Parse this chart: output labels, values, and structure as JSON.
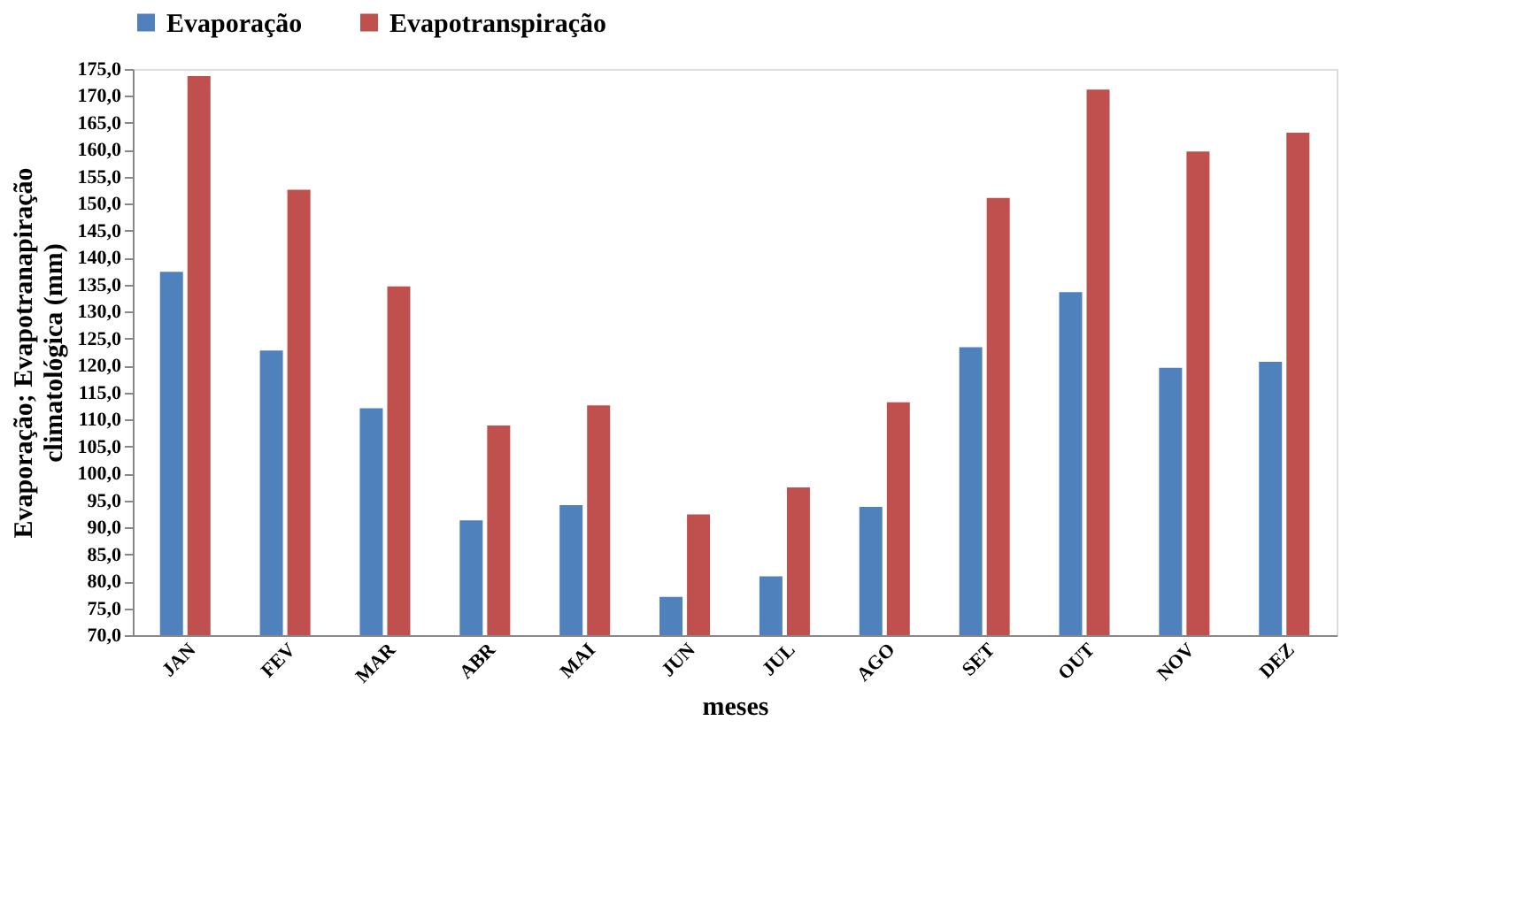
{
  "chart_data": {
    "type": "bar",
    "xlabel": "meses",
    "ylabel": [
      "Evaporação; Evapotranapiração",
      "climatológica (mm)"
    ],
    "categories": [
      "JAN",
      "FEV",
      "MAR",
      "ABR",
      "MAI",
      "JUN",
      "JUL",
      "AGO",
      "SET",
      "OUT",
      "NOV",
      "DEZ"
    ],
    "series": [
      {
        "name": "Evaporação",
        "color": "#4f81bd",
        "values": [
          137.4,
          122.8,
          112.1,
          91.3,
          94.1,
          77.1,
          80.9,
          93.8,
          123.4,
          133.6,
          119.6,
          120.7
        ]
      },
      {
        "name": "Evapotranspiração",
        "color": "#c0504d",
        "values": [
          173.7,
          152.6,
          134.7,
          108.9,
          112.6,
          92.4,
          97.4,
          113.2,
          151.1,
          171.2,
          159.7,
          163.2
        ]
      }
    ],
    "ylim": [
      70,
      175
    ],
    "yticks": [
      {
        "value": 70,
        "label": "70,0"
      },
      {
        "value": 75,
        "label": "75,0"
      },
      {
        "value": 80,
        "label": "80,0"
      },
      {
        "value": 85,
        "label": "85,0"
      },
      {
        "value": 90,
        "label": "90,0"
      },
      {
        "value": 95,
        "label": "95,0"
      },
      {
        "value": 100,
        "label": "100,0"
      },
      {
        "value": 105,
        "label": "105,0"
      },
      {
        "value": 110,
        "label": "110,0"
      },
      {
        "value": 115,
        "label": "115,0"
      },
      {
        "value": 120,
        "label": "120,0"
      },
      {
        "value": 125,
        "label": "125,0"
      },
      {
        "value": 130,
        "label": "130,0"
      },
      {
        "value": 135,
        "label": "135,0"
      },
      {
        "value": 140,
        "label": "140,0"
      },
      {
        "value": 145,
        "label": "145,0"
      },
      {
        "value": 150,
        "label": "150,0"
      },
      {
        "value": 155,
        "label": "155,0"
      },
      {
        "value": 160,
        "label": "160,0"
      },
      {
        "value": 165,
        "label": "165,0"
      },
      {
        "value": 170,
        "label": "170,0"
      },
      {
        "value": 175,
        "label": "175,0"
      }
    ],
    "legend": "top",
    "grid": false
  }
}
